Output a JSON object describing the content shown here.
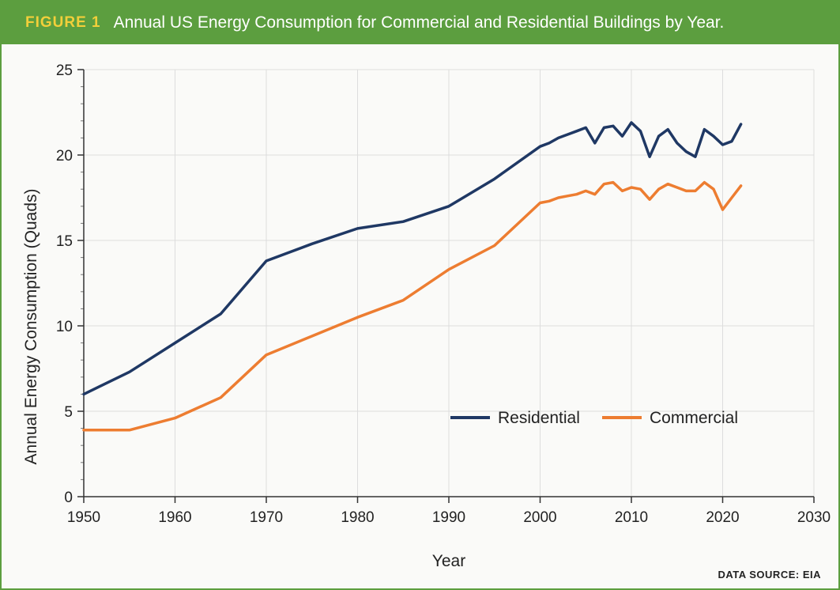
{
  "header": {
    "figure_label": "FIGURE 1",
    "title": "Annual US Energy Consumption for Commercial and Residential Buildings by Year."
  },
  "source": "DATA SOURCE: EIA",
  "colors": {
    "header_bg": "#5c9e3f",
    "figure_label": "#f2cf3a",
    "residential": "#1f3864",
    "commercial": "#ed7d31",
    "grid": "#dddddd"
  },
  "chart_data": {
    "type": "line",
    "xlabel": "Year",
    "ylabel": "Annual Energy Consumption (Quads)",
    "xlim": [
      1950,
      2030
    ],
    "ylim": [
      0,
      25
    ],
    "xticks": [
      1950,
      1960,
      1970,
      1980,
      1990,
      2000,
      2010,
      2020,
      2030
    ],
    "yticks": [
      0,
      5,
      10,
      15,
      20,
      25
    ],
    "grid": true,
    "legend_position": "lower-right",
    "series": [
      {
        "name": "Residential",
        "color": "#1f3864",
        "x": [
          1950,
          1955,
          1960,
          1965,
          1970,
          1975,
          1980,
          1985,
          1990,
          1995,
          2000,
          2001,
          2002,
          2003,
          2004,
          2005,
          2006,
          2007,
          2008,
          2009,
          2010,
          2011,
          2012,
          2013,
          2014,
          2015,
          2016,
          2017,
          2018,
          2019,
          2020,
          2021,
          2022
        ],
        "y": [
          6.0,
          7.3,
          9.0,
          10.7,
          13.8,
          14.8,
          15.7,
          16.1,
          17.0,
          18.6,
          20.5,
          20.7,
          21.0,
          21.2,
          21.4,
          21.6,
          20.7,
          21.6,
          21.7,
          21.1,
          21.9,
          21.4,
          19.9,
          21.1,
          21.5,
          20.7,
          20.2,
          19.9,
          21.5,
          21.1,
          20.6,
          20.8,
          21.8
        ]
      },
      {
        "name": "Commercial",
        "color": "#ed7d31",
        "x": [
          1950,
          1955,
          1960,
          1965,
          1970,
          1975,
          1980,
          1985,
          1990,
          1995,
          2000,
          2001,
          2002,
          2003,
          2004,
          2005,
          2006,
          2007,
          2008,
          2009,
          2010,
          2011,
          2012,
          2013,
          2014,
          2015,
          2016,
          2017,
          2018,
          2019,
          2020,
          2021,
          2022
        ],
        "y": [
          3.9,
          3.9,
          4.6,
          5.8,
          8.3,
          9.4,
          10.5,
          11.5,
          13.3,
          14.7,
          17.2,
          17.3,
          17.5,
          17.6,
          17.7,
          17.9,
          17.7,
          18.3,
          18.4,
          17.9,
          18.1,
          18.0,
          17.4,
          18.0,
          18.3,
          18.1,
          17.9,
          17.9,
          18.4,
          18.0,
          16.8,
          17.5,
          18.2
        ]
      }
    ]
  }
}
